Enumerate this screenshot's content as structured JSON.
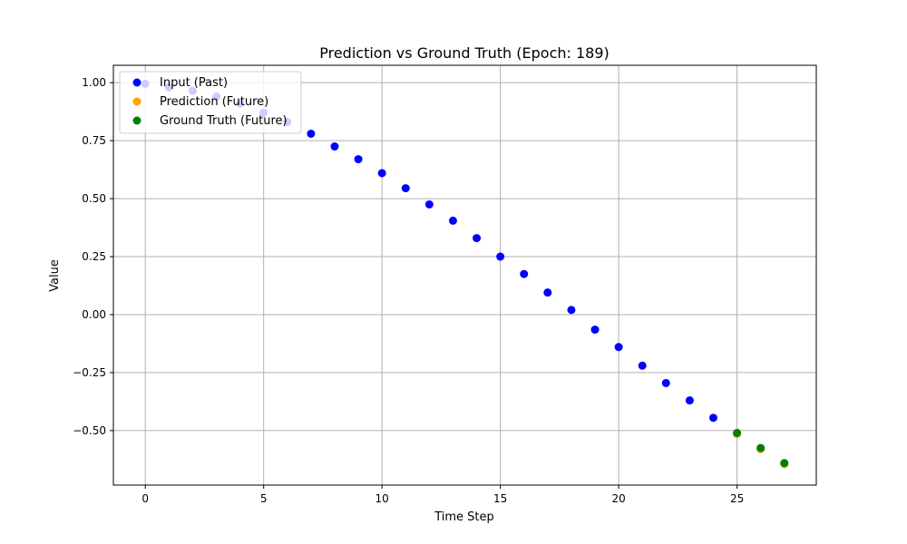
{
  "chart_data": {
    "type": "scatter",
    "title": "Prediction vs Ground Truth (Epoch: 189)",
    "xlabel": "Time Step",
    "ylabel": "Value",
    "xlim": [
      -1.35,
      28.35
    ],
    "ylim": [
      -0.735,
      1.075
    ],
    "xticks": [
      0,
      5,
      10,
      15,
      20,
      25
    ],
    "xtick_labels": [
      "0",
      "5",
      "10",
      "15",
      "20",
      "25"
    ],
    "yticks": [
      1.0,
      0.75,
      0.5,
      0.25,
      0.0,
      -0.25,
      -0.5
    ],
    "ytick_labels": [
      "1.00",
      "0.75",
      "0.50",
      "0.25",
      "0.00",
      "−0.25",
      "−0.50"
    ],
    "grid": true,
    "legend_position": "top-left",
    "series": [
      {
        "name": "Input (Past)",
        "color": "#0000ff",
        "x": [
          0,
          1,
          2,
          3,
          4,
          5,
          6,
          7,
          8,
          9,
          10,
          11,
          12,
          13,
          14,
          15,
          16,
          17,
          18,
          19,
          20,
          21,
          22,
          23,
          24
        ],
        "y": [
          0.995,
          0.98,
          0.965,
          0.94,
          0.91,
          0.87,
          0.83,
          0.78,
          0.725,
          0.67,
          0.61,
          0.545,
          0.475,
          0.405,
          0.33,
          0.25,
          0.175,
          0.095,
          0.02,
          -0.065,
          -0.14,
          -0.22,
          -0.295,
          -0.37,
          -0.445
        ]
      },
      {
        "name": "Prediction (Future)",
        "color": "#ffa500",
        "x": [
          25,
          26,
          27
        ],
        "y": [
          -0.515,
          -0.58,
          -0.645
        ]
      },
      {
        "name": "Ground Truth (Future)",
        "color": "#008000",
        "x": [
          25,
          26,
          27
        ],
        "y": [
          -0.51,
          -0.575,
          -0.64
        ]
      }
    ]
  }
}
